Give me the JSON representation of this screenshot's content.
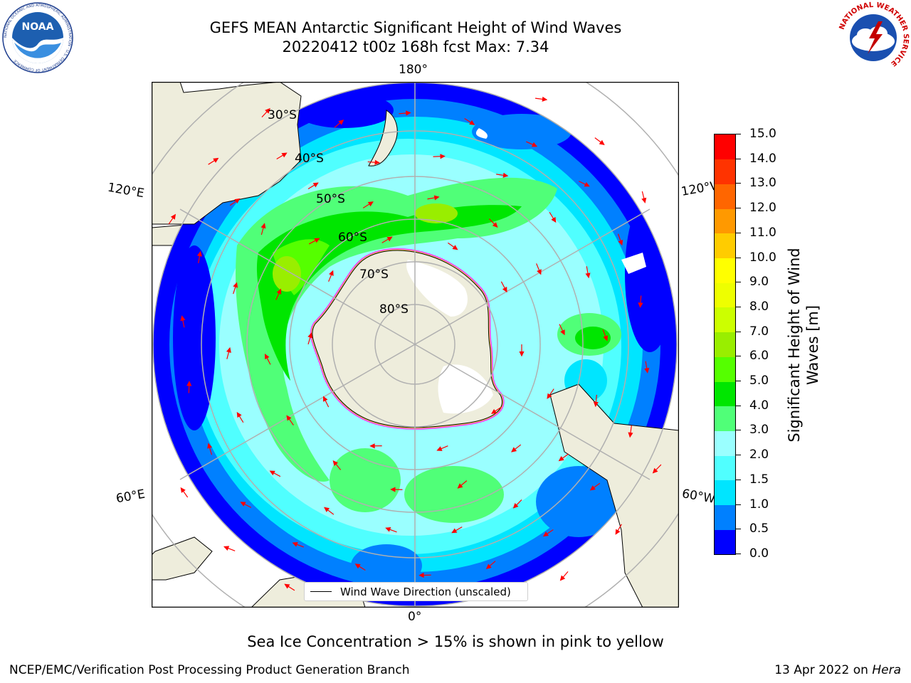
{
  "title": {
    "line1": "GEFS MEAN Antarctic Significant Height of Wind Waves",
    "line2": "20220412 t00z 168h fcst   Max: 7.34"
  },
  "logos": {
    "noaa_text": "NOAA",
    "noaa_ring": "NATIONAL OCEANIC AND ATMOSPHERIC ADMINISTRATION · U.S. DEPARTMENT OF COMMERCE",
    "nws_ring": "NATIONAL WEATHER SERVICE"
  },
  "map": {
    "projection": "south-polar-stereographic",
    "lon_labels": {
      "top": "180°",
      "bottom": "0°",
      "upper_left": "120°E",
      "upper_right": "120°W",
      "lower_left": "60°E",
      "lower_right": "60°W"
    },
    "lat_labels": [
      "30°S",
      "40°S",
      "50°S",
      "60°S",
      "70°S",
      "80°S"
    ],
    "legend_label": "Wind Wave Direction (unscaled)",
    "colors": {
      "land": "#eeeddc",
      "arrow": "#ff0000",
      "ice_edge": "#ff33ff",
      "grid": "#b0b0b0"
    }
  },
  "colorbar": {
    "label": "Significant Height of Wind Waves [m]",
    "ticks": [
      "0.0",
      "0.5",
      "1.0",
      "1.5",
      "2.0",
      "3.0",
      "4.0",
      "5.0",
      "6.0",
      "7.0",
      "8.0",
      "9.0",
      "10.0",
      "11.0",
      "12.0",
      "13.0",
      "14.0",
      "15.0"
    ],
    "colors": [
      "#0000ff",
      "#0080ff",
      "#00e5ff",
      "#50ffff",
      "#9affff",
      "#50ff78",
      "#00e600",
      "#55ff00",
      "#99ee00",
      "#ccff00",
      "#eeff00",
      "#ffff00",
      "#ffcc00",
      "#ff9900",
      "#ff6600",
      "#ff3300",
      "#ff0000"
    ]
  },
  "note": "Sea Ice Concentration > 15% is shown in pink to yellow",
  "footer": {
    "left": "NCEP/EMC/Verification Post Processing Product Generation Branch",
    "right_prefix": "13 Apr 2022 on ",
    "right_italic": "Hera"
  }
}
